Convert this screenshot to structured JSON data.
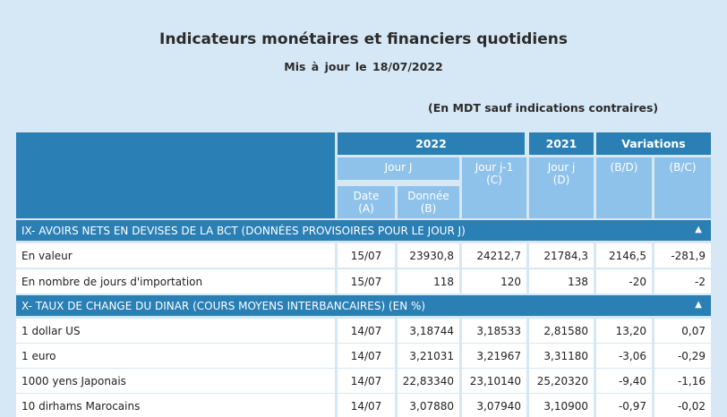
{
  "header": {
    "title": "Indicateurs monétaires et financiers quotidiens",
    "update_label": "Mis à jour le",
    "update_date": "18/07/2022",
    "unit_note": "(En MDT sauf indications contraires)"
  },
  "columns": {
    "year_2022": "2022",
    "year_2021": "2021",
    "variations": "Variations",
    "jour_j": "Jour J",
    "jour_j1": "Jour j-1",
    "jour_j1_sub": "(C)",
    "jour_j_2021": "Jour j",
    "jour_j_2021_sub": "(D)",
    "bd": "(B/D)",
    "bc": "(B/C)",
    "date": "Date",
    "date_sub": "(A)",
    "donnee": "Donnée",
    "donnee_sub": "(B)"
  },
  "sections": [
    {
      "title": "IX- AVOIRS NETS EN DEVISES DE LA BCT (DONNÉES PROVISOIRES POUR LE JOUR J)",
      "toggle": "▲",
      "rows": [
        {
          "label": "En valeur",
          "date": "15/07",
          "donnee": "23930,8",
          "j1": "24212,7",
          "d2021": "21784,3",
          "bd": "2146,5",
          "bc": "-281,9"
        },
        {
          "label": "En nombre de jours d'importation",
          "date": "15/07",
          "donnee": "118",
          "j1": "120",
          "d2021": "138",
          "bd": "-20",
          "bc": "-2"
        }
      ]
    },
    {
      "title": "X- TAUX DE CHANGE DU DINAR (COURS MOYENS INTERBANCAIRES) (EN %)",
      "toggle": "▲",
      "rows": [
        {
          "label": "1 dollar US",
          "date": "14/07",
          "donnee": "3,18744",
          "j1": "3,18533",
          "d2021": "2,81580",
          "bd": "13,20",
          "bc": "0,07"
        },
        {
          "label": "1 euro",
          "date": "14/07",
          "donnee": "3,21031",
          "j1": "3,21967",
          "d2021": "3,31180",
          "bd": "-3,06",
          "bc": "-0,29"
        },
        {
          "label": "1000 yens Japonais",
          "date": "14/07",
          "donnee": "22,83340",
          "j1": "23,10140",
          "d2021": "25,20320",
          "bd": "-9,40",
          "bc": "-1,16"
        },
        {
          "label": "10 dirhams Marocains",
          "date": "14/07",
          "donnee": "3,07880",
          "j1": "3,07940",
          "d2021": "3,10900",
          "bd": "-0,97",
          "bc": "-0,02"
        }
      ]
    }
  ]
}
